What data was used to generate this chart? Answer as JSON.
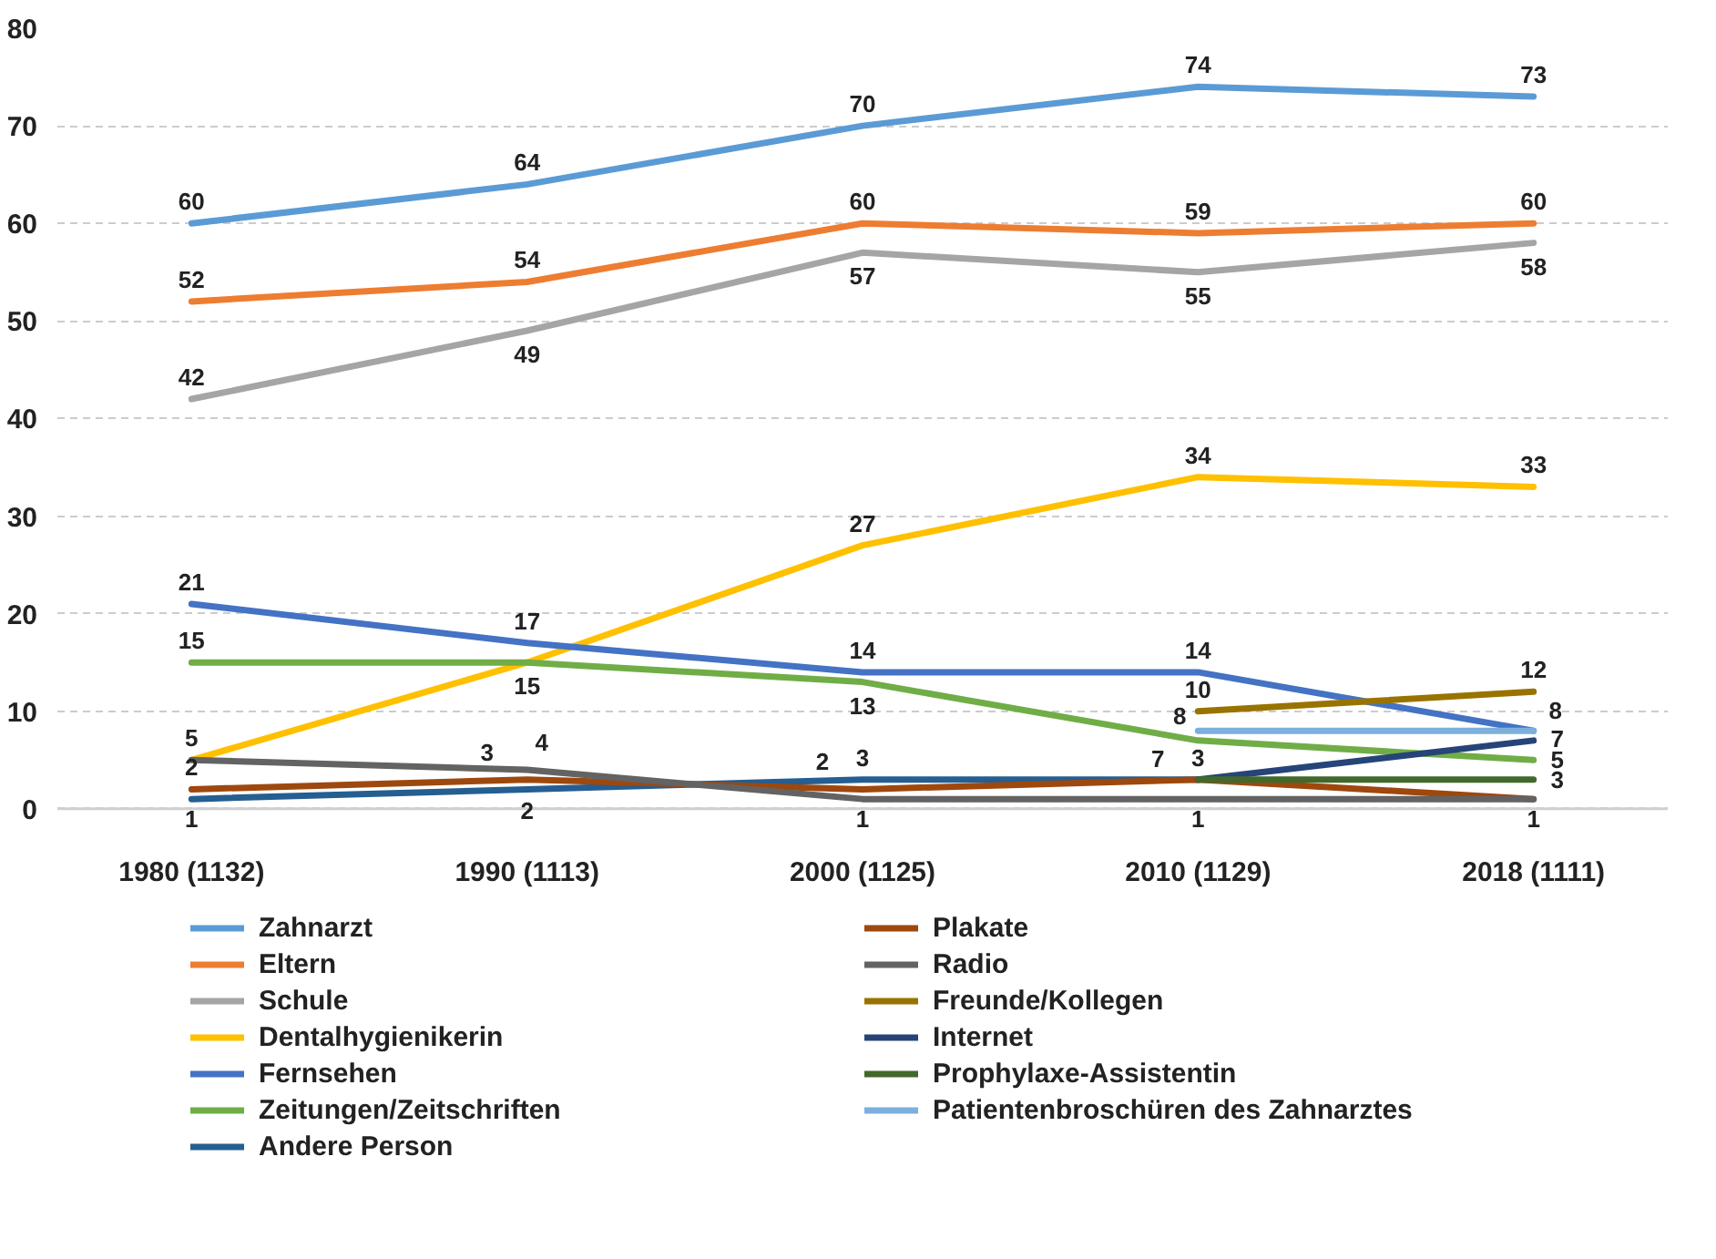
{
  "chart_data": {
    "type": "line",
    "categories": [
      "1980 (1132)",
      "1990 (1113)",
      "2000 (1125)",
      "2010 (1129)",
      "2018 (1111)"
    ],
    "ylim": [
      0,
      80
    ],
    "yticks": [
      0,
      10,
      20,
      30,
      40,
      50,
      60,
      70,
      80
    ],
    "grid": "y",
    "legend": "bottom",
    "marker": "none",
    "line_style": "solid",
    "series": [
      {
        "name": "Zahnarzt",
        "color": "#5b9bd5",
        "values": [
          60,
          64,
          70,
          74,
          73
        ],
        "value_labels": [
          "60",
          "64",
          "70",
          "74",
          "73"
        ]
      },
      {
        "name": "Eltern",
        "color": "#ed7d31",
        "values": [
          52,
          54,
          60,
          59,
          60
        ],
        "value_labels": [
          "52",
          "54",
          "60",
          "59",
          "60"
        ]
      },
      {
        "name": "Schule",
        "color": "#a5a5a5",
        "values": [
          42,
          49,
          57,
          55,
          58
        ],
        "value_labels": [
          "42",
          "49",
          "57",
          "55",
          "58"
        ]
      },
      {
        "name": "Dentalhygienikerin",
        "color": "#ffc000",
        "values": [
          5,
          15,
          27,
          34,
          33
        ],
        "value_labels": [
          "5",
          "15",
          "27",
          "34",
          "33"
        ]
      },
      {
        "name": "Fernsehen",
        "color": "#4472c4",
        "values": [
          21,
          17,
          14,
          14,
          8
        ],
        "value_labels": [
          "21",
          "17",
          "14",
          "14",
          "8"
        ]
      },
      {
        "name": "Zeitungen/Zeitschriften",
        "color": "#70ad47",
        "values": [
          15,
          15,
          13,
          7,
          5
        ],
        "value_labels": [
          "15",
          null,
          "13",
          "7",
          "5"
        ]
      },
      {
        "name": "Andere Person",
        "color": "#255e91",
        "values": [
          1,
          2,
          3,
          3,
          null
        ],
        "value_labels": [
          "1",
          "2",
          "3",
          null,
          null
        ]
      },
      {
        "name": "Plakate",
        "color": "#9e480e",
        "values": [
          2,
          3,
          2,
          3,
          1
        ],
        "value_labels": [
          "2",
          "3",
          "2",
          null,
          null
        ]
      },
      {
        "name": "Radio",
        "color": "#636363",
        "values": [
          5,
          4,
          1,
          1,
          1
        ],
        "value_labels": [
          null,
          "4",
          "1",
          "1",
          "1"
        ]
      },
      {
        "name": "Freunde/Kollegen",
        "color": "#997300",
        "values": [
          null,
          null,
          null,
          10,
          12
        ],
        "value_labels": [
          null,
          null,
          null,
          "10",
          "12"
        ]
      },
      {
        "name": "Internet",
        "color": "#264478",
        "values": [
          null,
          null,
          null,
          3,
          7
        ],
        "value_labels": [
          null,
          null,
          null,
          null,
          "7"
        ]
      },
      {
        "name": "Prophylaxe-Assistentin",
        "color": "#43682b",
        "values": [
          null,
          null,
          null,
          3,
          3
        ],
        "value_labels": [
          null,
          null,
          null,
          "3",
          "3"
        ]
      },
      {
        "name": "Patientenbroschüren des Zahnarztes",
        "color": "#7cafdd",
        "values": [
          null,
          null,
          null,
          8,
          8
        ],
        "value_labels": [
          null,
          null,
          null,
          "8",
          null
        ]
      }
    ]
  }
}
